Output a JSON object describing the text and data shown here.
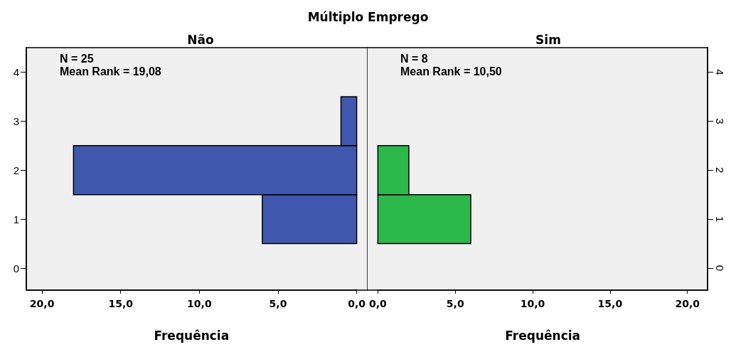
{
  "chart_data": [
    {
      "type": "histogram",
      "orientation": "horizontal",
      "title": "Não",
      "xlabel": "Frequência",
      "bins": [
        0.5,
        1.5,
        2.5,
        3.5
      ],
      "values": [
        6,
        18,
        1
      ],
      "color": "#3f58ad",
      "xlim": [
        21,
        0
      ],
      "xticks": [
        {
          "value": 20,
          "label": "20,0"
        },
        {
          "value": 15,
          "label": "15,0"
        },
        {
          "value": 10,
          "label": "10,0"
        },
        {
          "value": 5,
          "label": "5,0"
        },
        {
          "value": 0,
          "label": "0,0"
        }
      ],
      "ylim": [
        -0.45,
        4.5
      ],
      "yticks": [
        0,
        1,
        2,
        3,
        4
      ],
      "grid": false,
      "annotations": [
        "Múltiplo Emprego",
        "N = 25",
        "Mean Rank = 19,08"
      ]
    },
    {
      "type": "histogram",
      "orientation": "horizontal",
      "title": "Sim",
      "xlabel": "Frequência",
      "bins": [
        0.5,
        1.5,
        2.5
      ],
      "values": [
        6,
        2
      ],
      "color": "#2db84b",
      "xlim": [
        0,
        21.3
      ],
      "xticks": [
        {
          "value": 0,
          "label": "0,0"
        },
        {
          "value": 5,
          "label": "5,0"
        },
        {
          "value": 10,
          "label": "10,0"
        },
        {
          "value": 15,
          "label": "15,0"
        },
        {
          "value": 20,
          "label": "20,0"
        }
      ],
      "ylim": [
        -0.45,
        4.5
      ],
      "yticks": [
        0,
        1,
        2,
        3,
        4
      ],
      "grid": false,
      "annotations": [
        "N = 8",
        "Mean Rank = 10,50"
      ]
    }
  ]
}
